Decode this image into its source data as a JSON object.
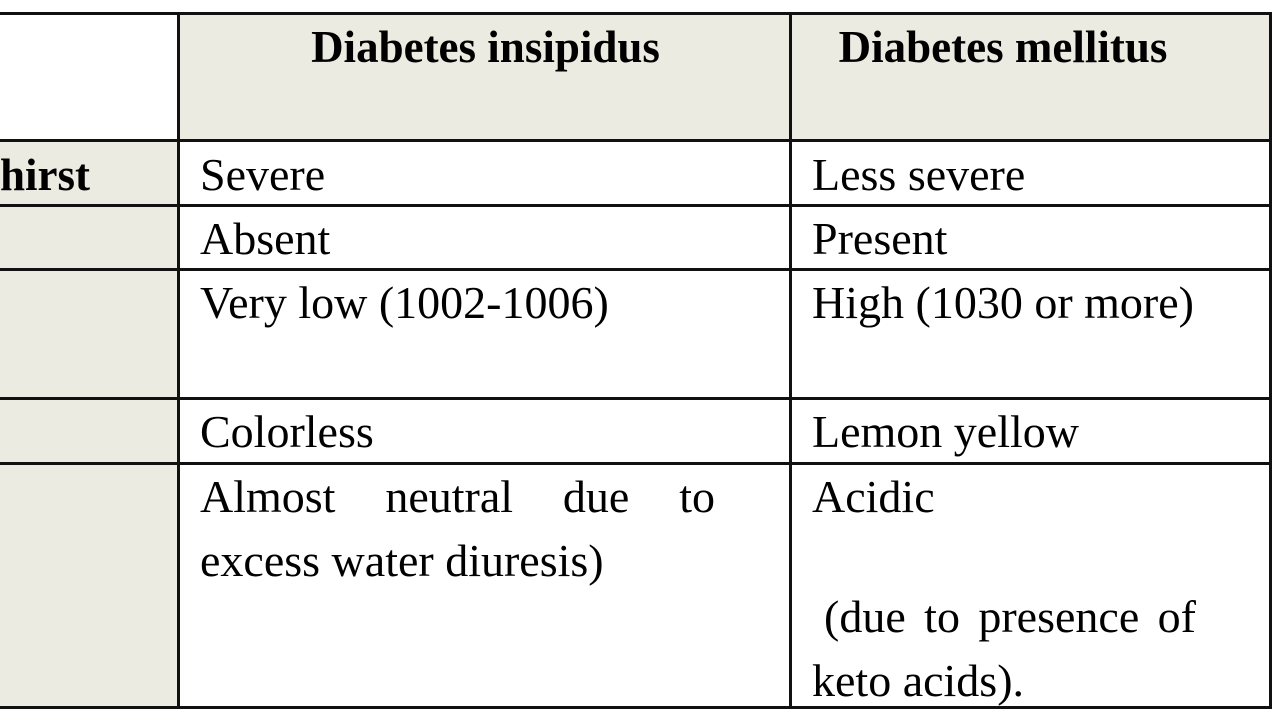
{
  "table": {
    "header": [
      "",
      "Diabetes insipidus",
      "Diabetes mellitus"
    ],
    "rows": [
      {
        "label": "hirst",
        "insipidus": "Severe",
        "mellitus": "Less severe"
      },
      {
        "label": "",
        "insipidus": "Absent",
        "mellitus": "Present"
      },
      {
        "label": "",
        "insipidus": "Very low (1002-1006)",
        "mellitus": "High (1030 or more)"
      },
      {
        "label": "",
        "insipidus": "Colorless",
        "mellitus": "Lemon yellow"
      },
      {
        "label": "",
        "insipidus": "Almost neutral due to excess water diuresis)",
        "mellitus": "Acidic",
        "mellitus_note": "(due to presence of keto acids)."
      }
    ]
  },
  "colors": {
    "label_column_bg": "#ecebe2",
    "border": "#111111"
  }
}
